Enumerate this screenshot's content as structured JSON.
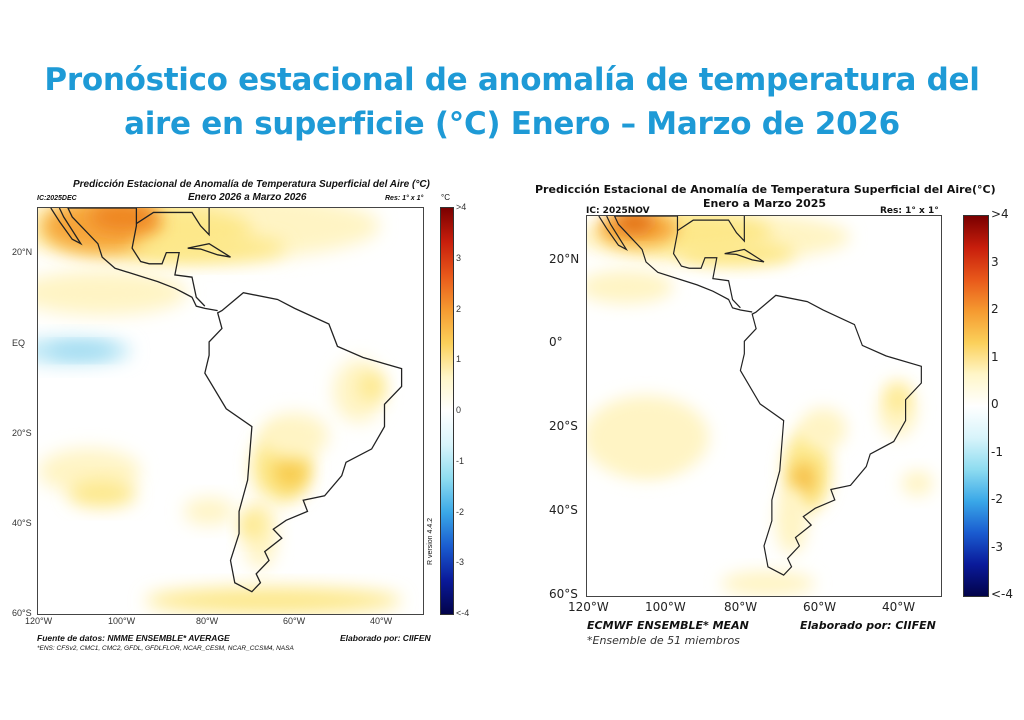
{
  "title": {
    "line1": "Pronóstico estacional de anomalía de temperatura del",
    "line2": "aire en superficie (°C) Enero – Marzo de 2026"
  },
  "left": {
    "title": "Predicción Estacional de Anomalía de Temperatura Superficial del Aire (°C)",
    "subtitle": "Enero 2026 a Marzo 2026",
    "ic": "IC:2025DEC",
    "res": "Res: 1° x 1°",
    "unit": "°C",
    "lat_ticks": [
      "20°N",
      "EQ",
      "20°S",
      "40°S",
      "60°S"
    ],
    "lon_ticks": [
      "120°W",
      "100°W",
      "80°W",
      "60°W",
      "40°W"
    ],
    "source": "Fuente de datos: NMME ENSEMBLE* AVERAGE",
    "credit": "Elaborado por: CIIFEN",
    "footnote": "*ENS: CFSv2, CMC1, CMC2, GFDL, GFDLFLOR, NCAR_CESM, NCAR_CCSM4, NASA",
    "version": "R version 4.4.2"
  },
  "right": {
    "title": "Predicción Estacional de Anomalía de Temperatura Superficial del Aire(°C)",
    "subtitle": "Enero a Marzo 2025",
    "ic": "IC: 2025NOV",
    "res": "Res: 1° x 1°",
    "lat_ticks": [
      "20°N",
      "0°",
      "20°S",
      "40°S",
      "60°S"
    ],
    "lon_ticks": [
      "120°W",
      "100°W",
      "80°W",
      "60°W",
      "40°W"
    ],
    "source": "ECMWF ENSEMBLE* MEAN",
    "credit": "Elaborado por: CIIFEN",
    "footnote": "*Ensemble de 51 miembros"
  },
  "colorbar": {
    "labels": [
      ">4",
      "3",
      "2",
      "1",
      "0",
      "-1",
      "-2",
      "-3",
      "<-4"
    ],
    "colors": [
      "#7a0000",
      "#c81e0c",
      "#e8581a",
      "#f59a30",
      "#fbd05a",
      "#fff6c8",
      "#ffffff",
      "#d8f4fb",
      "#8edcf0",
      "#3aa8e8",
      "#1a5cd0",
      "#0a1a9a",
      "#02034a"
    ]
  }
}
